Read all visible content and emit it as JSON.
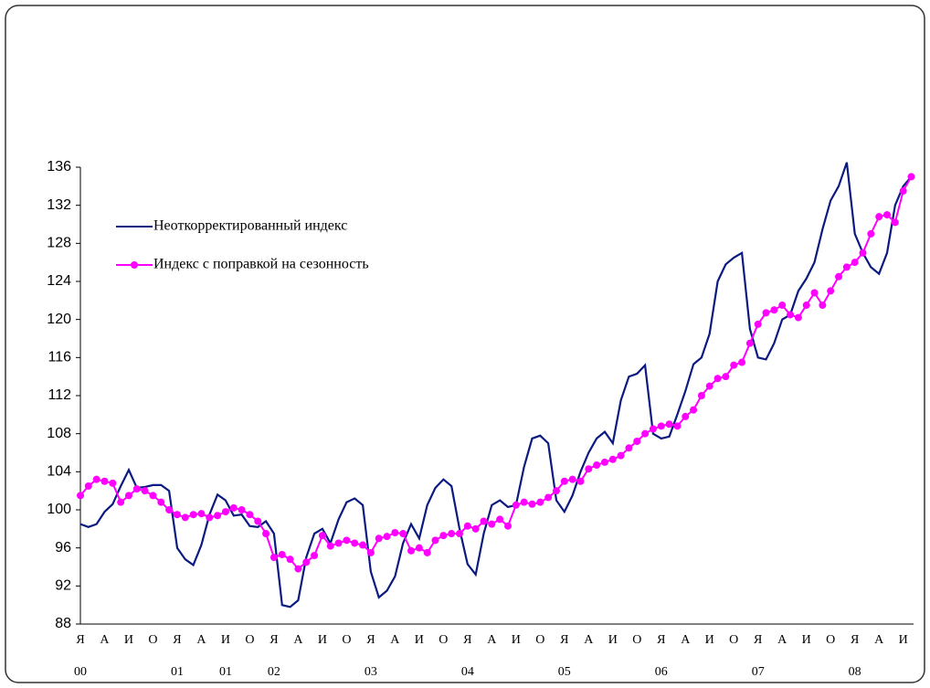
{
  "chart_data": {
    "type": "line",
    "categories": [
      "Я",
      null,
      null,
      "А",
      null,
      null,
      "И",
      null,
      null,
      "О",
      null,
      null,
      "Я",
      null,
      null,
      "А",
      null,
      null,
      "И",
      null,
      null,
      "О",
      null,
      null,
      "Я",
      null,
      null,
      "А",
      null,
      null,
      "И",
      null,
      null,
      "О",
      null,
      null,
      "Я",
      null,
      null,
      "А",
      null,
      null,
      "И",
      null,
      null,
      "О",
      null,
      null,
      "Я",
      null,
      null,
      "А",
      null,
      null,
      "И",
      null,
      null,
      "О",
      null,
      null,
      "Я",
      null,
      null,
      "А",
      null,
      null,
      "И",
      null,
      null,
      "О",
      null,
      null,
      "Я",
      null,
      null,
      "А",
      null,
      null,
      "И",
      null,
      null,
      "О",
      null,
      null,
      "Я",
      null,
      null,
      "А",
      null,
      null,
      "И",
      null,
      null,
      "О",
      null,
      null,
      "Я",
      null,
      null,
      "А",
      null,
      null,
      "И",
      null
    ],
    "year_labels": [
      "00",
      null,
      null,
      null,
      null,
      null,
      null,
      null,
      null,
      null,
      null,
      null,
      "01",
      null,
      null,
      null,
      null,
      null,
      "01",
      null,
      null,
      null,
      null,
      null,
      "02",
      null,
      null,
      null,
      null,
      null,
      null,
      null,
      null,
      null,
      null,
      null,
      "03",
      null,
      null,
      null,
      null,
      null,
      null,
      null,
      null,
      null,
      null,
      null,
      "04",
      null,
      null,
      null,
      null,
      null,
      null,
      null,
      null,
      null,
      null,
      null,
      "05",
      null,
      null,
      null,
      null,
      null,
      null,
      null,
      null,
      null,
      null,
      null,
      "06",
      null,
      null,
      null,
      null,
      null,
      null,
      null,
      null,
      null,
      null,
      null,
      "07",
      null,
      null,
      null,
      null,
      null,
      null,
      null,
      null,
      null,
      null,
      null,
      "08",
      null,
      null,
      null,
      null,
      null,
      null,
      null
    ],
    "series": [
      {
        "name": "Неоткорректированный индекс",
        "color": "#0b1a80",
        "markers": false,
        "values": [
          98.5,
          98.2,
          98.5,
          99.8,
          100.6,
          102.5,
          104.2,
          102.3,
          102.4,
          102.6,
          102.6,
          102,
          96,
          94.8,
          94.2,
          96.3,
          99.5,
          101.6,
          101,
          99.4,
          99.5,
          98.3,
          98.2,
          98.8,
          97.5,
          90,
          89.8,
          90.5,
          95,
          97.5,
          98,
          96.5,
          99,
          100.8,
          101.2,
          100.5,
          93.5,
          90.8,
          91.5,
          93,
          96.5,
          98.5,
          97,
          100.5,
          102.3,
          103.2,
          102.5,
          98,
          94.3,
          93.2,
          97.5,
          100.5,
          101,
          100.3,
          100.5,
          104.5,
          107.5,
          107.8,
          107,
          101,
          99.8,
          101.5,
          104,
          106,
          107.5,
          108.2,
          107,
          111.5,
          114,
          114.3,
          115.2,
          108,
          107.5,
          107.7,
          110,
          112.5,
          115.3,
          116,
          118.5,
          124,
          125.8,
          126.5,
          127,
          119,
          116,
          115.8,
          117.5,
          120,
          120.5,
          123,
          124.3,
          126,
          129.5,
          132.5,
          134,
          136.5,
          129,
          127,
          125.5,
          124.8,
          127,
          132,
          134,
          135
        ]
      },
      {
        "name": "Индекс с поправкой на сезонность",
        "color": "#ff00ff",
        "markers": true,
        "values": [
          101.5,
          102.5,
          103.2,
          103,
          102.8,
          100.8,
          101.5,
          102.2,
          102,
          101.5,
          100.8,
          100,
          99.5,
          99.2,
          99.5,
          99.6,
          99.2,
          99.4,
          99.8,
          100.2,
          100,
          99.5,
          98.8,
          97.5,
          95,
          95.3,
          94.8,
          93.8,
          94.5,
          95.2,
          97.3,
          96.2,
          96.5,
          96.8,
          96.5,
          96.3,
          95.5,
          97,
          97.2,
          97.6,
          97.5,
          95.7,
          96,
          95.5,
          96.8,
          97.3,
          97.5,
          97.5,
          98.3,
          98,
          98.8,
          98.5,
          99,
          98.3,
          100.5,
          100.8,
          100.6,
          100.8,
          101.3,
          102,
          103,
          103.2,
          103,
          104.3,
          104.7,
          105,
          105.3,
          105.7,
          106.5,
          107.2,
          108,
          108.5,
          108.8,
          109,
          108.8,
          109.8,
          110.5,
          112,
          113,
          113.8,
          114,
          115.2,
          115.5,
          117.5,
          119.5,
          120.7,
          121,
          121.5,
          120.5,
          120.2,
          121.5,
          122.8,
          121.5,
          123,
          124.5,
          125.5,
          126,
          127,
          129,
          130.8,
          131,
          130.2,
          133.5,
          135
        ]
      }
    ],
    "ylim": [
      88,
      136
    ],
    "yticks": [
      88,
      92,
      96,
      100,
      104,
      108,
      112,
      116,
      120,
      124,
      128,
      132,
      136
    ],
    "grid": false
  }
}
